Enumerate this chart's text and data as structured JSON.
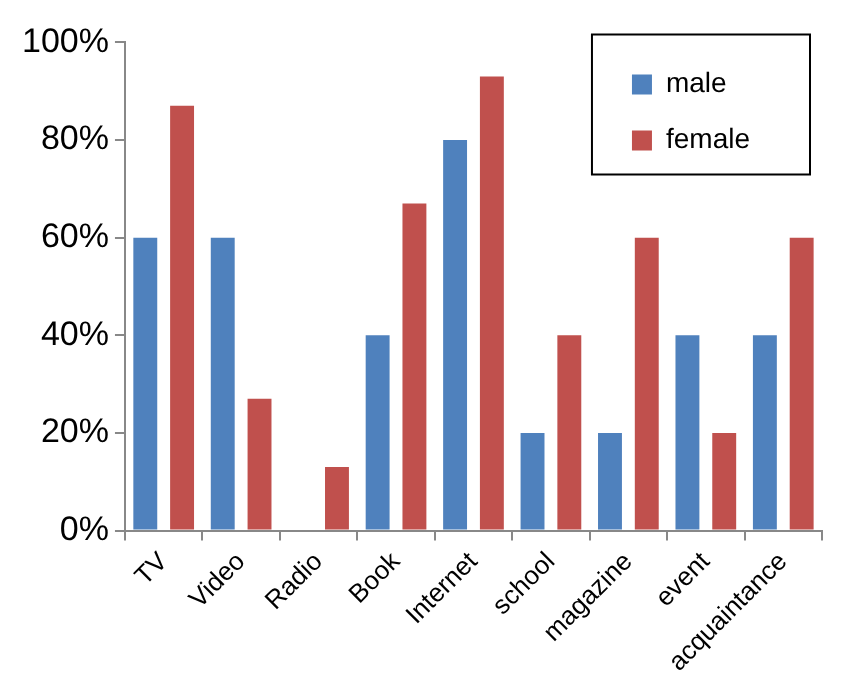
{
  "chart_data": {
    "type": "bar",
    "categories": [
      "TV",
      "Video",
      "Radio",
      "Book",
      "Internet",
      "school",
      "magazine",
      "event",
      "acquaintance"
    ],
    "series": [
      {
        "name": "male",
        "color": "#4f81bd",
        "values": [
          60,
          60,
          0,
          40,
          80,
          20,
          20,
          40,
          40
        ]
      },
      {
        "name": "female",
        "color": "#c0504d",
        "values": [
          87,
          27,
          13,
          67,
          93,
          40,
          60,
          20,
          60
        ]
      }
    ],
    "ylim": [
      0,
      100
    ],
    "yticks": [
      {
        "value": 0,
        "label": "0%"
      },
      {
        "value": 20,
        "label": "20%"
      },
      {
        "value": 40,
        "label": "40%"
      },
      {
        "value": 60,
        "label": "60%"
      },
      {
        "value": 80,
        "label": "80%"
      },
      {
        "value": 100,
        "label": "100%"
      }
    ],
    "grid": false,
    "legend": "top right"
  }
}
